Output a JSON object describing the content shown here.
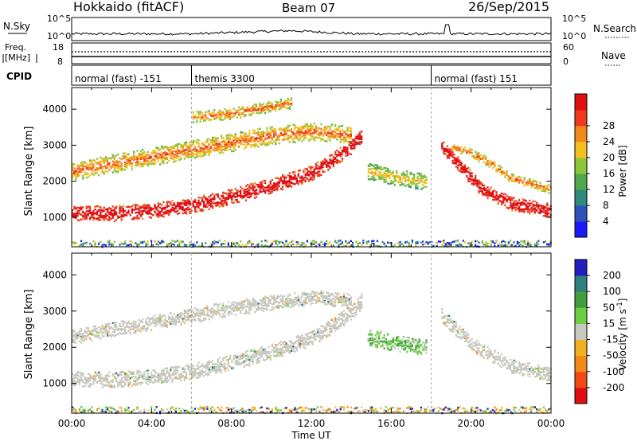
{
  "header": {
    "station": "Hokkaido (fitACF)",
    "beam": "Beam 07",
    "date": "26/Sep/2015"
  },
  "noise_panel": {
    "left_label": "N.Sky",
    "left_ticks": [
      "10^5",
      "10^0"
    ],
    "right_ticks": [
      "10^5",
      "10^0"
    ],
    "right_label": "N.Search"
  },
  "freq_panel": {
    "left_label_1": "Freq.",
    "left_label_2": "[MHz]",
    "left_ticks": [
      "18",
      "8"
    ],
    "right_ticks": [
      "60",
      "0"
    ],
    "right_label": "Nave"
  },
  "cpid_panel": {
    "label": "CPID",
    "segments": [
      {
        "label": "normal (fast) -151",
        "start_hour": 0
      },
      {
        "label": "themis 3300",
        "start_hour": 6
      },
      {
        "label": "normal (fast) 151",
        "start_hour": 18
      }
    ]
  },
  "chart_data": [
    {
      "type": "heatmap",
      "name": "power",
      "ylabel": "Slant Range [km]",
      "yticks": [
        1000,
        2000,
        3000,
        4000
      ],
      "ylim": [
        180,
        4600
      ],
      "xlim": [
        0,
        24
      ],
      "colorbar": {
        "label": "Power [dB]",
        "ticks": [
          "4",
          "8",
          "12",
          "16",
          "20",
          "24",
          "28"
        ],
        "colors": [
          "#1a1aff",
          "#2a52b8",
          "#2e8a7a",
          "#4fa84a",
          "#8cc63a",
          "#f5c020",
          "#f08a1a",
          "#ee3a1a",
          "#e01010"
        ]
      },
      "bands": [
        {
          "desc": "main echo band",
          "points": [
            [
              0,
              1150
            ],
            [
              2,
              1120
            ],
            [
              4,
              1200
            ],
            [
              6,
              1350
            ],
            [
              8,
              1600
            ],
            [
              10,
              1900
            ],
            [
              12,
              2250
            ],
            [
              13,
              2600
            ],
            [
              14,
              3000
            ],
            [
              14.5,
              3300
            ]
          ],
          "width": 420,
          "level": "high"
        },
        {
          "desc": "upper diffuse",
          "points": [
            [
              0,
              2300
            ],
            [
              2,
              2500
            ],
            [
              4,
              2700
            ],
            [
              6,
              2900
            ],
            [
              8,
              3100
            ],
            [
              10,
              3300
            ],
            [
              12,
              3400
            ],
            [
              14,
              3300
            ]
          ],
          "width": 500,
          "level": "mid"
        },
        {
          "desc": "high range patches",
          "points": [
            [
              6,
              3800
            ],
            [
              8,
              3900
            ],
            [
              10,
              4100
            ],
            [
              11,
              4200
            ]
          ],
          "width": 300,
          "level": "mid"
        },
        {
          "desc": "post-noon cluster",
          "points": [
            [
              14.8,
              2300
            ],
            [
              16,
              2150
            ],
            [
              17,
              2050
            ],
            [
              17.8,
              2000
            ]
          ],
          "width": 450,
          "level": "low"
        },
        {
          "desc": "evening descending band",
          "points": [
            [
              18.5,
              3000
            ],
            [
              19.5,
              2400
            ],
            [
              20.5,
              1800
            ],
            [
              22,
              1400
            ],
            [
              24,
              1200
            ]
          ],
          "width": 380,
          "level": "high"
        },
        {
          "desc": "evening upper band",
          "points": [
            [
              19,
              3000
            ],
            [
              20,
              2800
            ],
            [
              21,
              2500
            ],
            [
              22,
              2100
            ],
            [
              24,
              1800
            ]
          ],
          "width": 250,
          "level": "mid"
        }
      ]
    },
    {
      "type": "heatmap",
      "name": "velocity",
      "ylabel": "Slant Range [km]",
      "yticks": [
        1000,
        2000,
        3000,
        4000
      ],
      "ylim": [
        180,
        4600
      ],
      "xlim": [
        0,
        24
      ],
      "xticks": [
        "00:00",
        "04:00",
        "08:00",
        "12:00",
        "16:00",
        "20:00",
        "00:00"
      ],
      "xlabel": "Time UT",
      "colorbar": {
        "label": "Velocity [m s^-1]",
        "ticks": [
          "-200",
          "-100",
          "-50",
          "-15",
          "15",
          "50",
          "100",
          "200"
        ],
        "colors": [
          "#e01010",
          "#f04a10",
          "#f08a1a",
          "#f0b020",
          "#c8c8c0",
          "#6ad040",
          "#40a040",
          "#308080",
          "#2020c0"
        ]
      },
      "bands": [
        {
          "desc": "ground scatter main band",
          "points": [
            [
              0,
              1150
            ],
            [
              2,
              1120
            ],
            [
              4,
              1200
            ],
            [
              6,
              1350
            ],
            [
              8,
              1600
            ],
            [
              10,
              1900
            ],
            [
              12,
              2250
            ],
            [
              13,
              2600
            ],
            [
              14,
              3000
            ],
            [
              14.5,
              3300
            ]
          ],
          "width": 420,
          "kind": "ground"
        },
        {
          "desc": "upper diffuse",
          "points": [
            [
              0,
              2300
            ],
            [
              4,
              2700
            ],
            [
              8,
              3100
            ],
            [
              12,
              3400
            ],
            [
              14,
              3300
            ]
          ],
          "width": 400,
          "kind": "ground"
        },
        {
          "desc": "post-noon ionospheric",
          "points": [
            [
              14.8,
              2300
            ],
            [
              16,
              2150
            ],
            [
              17,
              2050
            ],
            [
              17.8,
              2000
            ]
          ],
          "width": 450,
          "kind": "ionos"
        },
        {
          "desc": "evening ground band",
          "points": [
            [
              18.5,
              2900
            ],
            [
              20,
              2100
            ],
            [
              22,
              1500
            ],
            [
              24,
              1250
            ]
          ],
          "width": 380,
          "kind": "ground"
        }
      ]
    }
  ]
}
